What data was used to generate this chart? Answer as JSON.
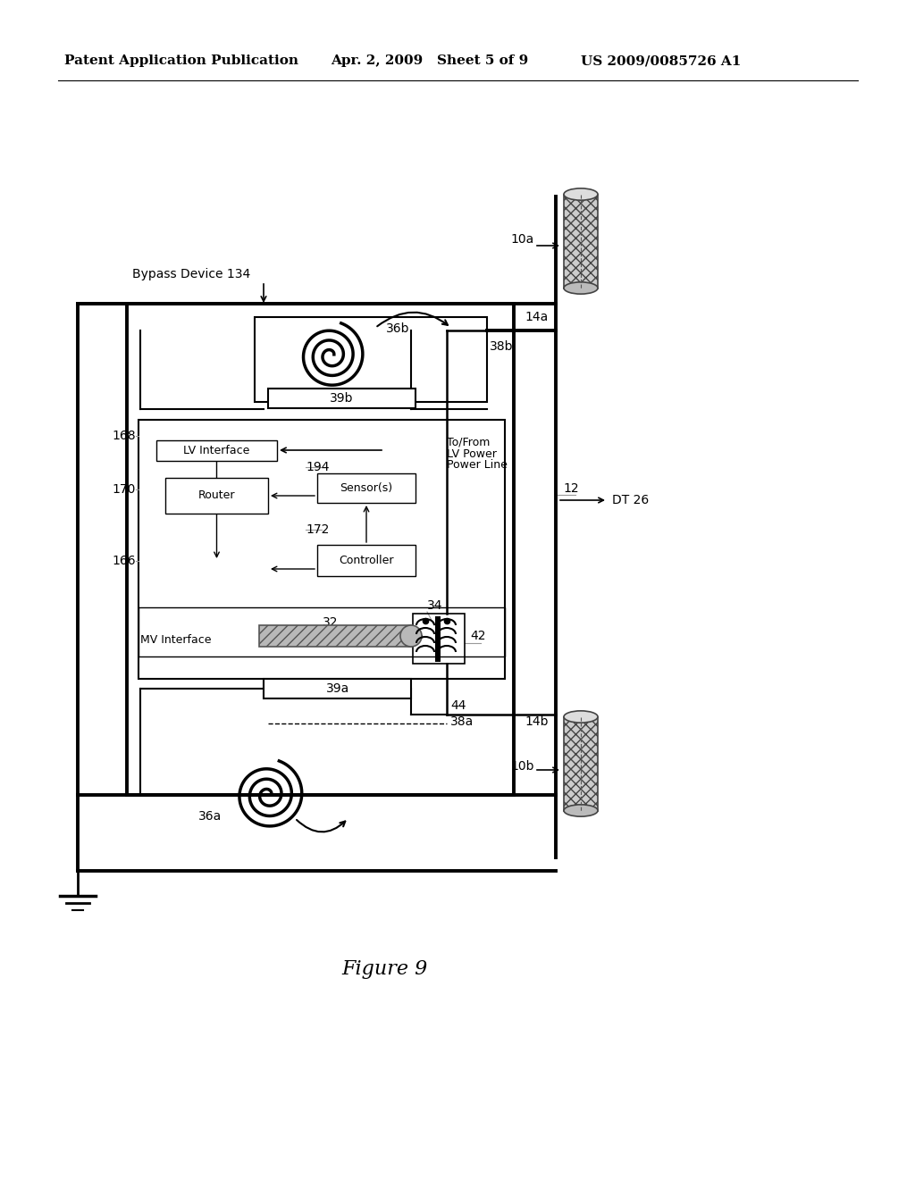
{
  "header_left": "Patent Application Publication",
  "header_mid": "Apr. 2, 2009   Sheet 5 of 9",
  "header_right": "US 2009/0085726 A1",
  "figure_label": "Figure 9",
  "bg_color": "#ffffff",
  "lc": "#000000",
  "lgc": "#999999"
}
